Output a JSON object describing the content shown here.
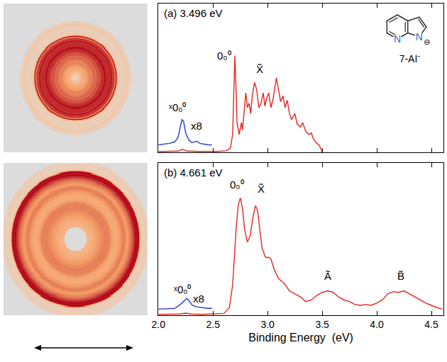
{
  "chart_data": [
    {
      "type": "line",
      "title": "(a) 3.496 eV",
      "photon_energy": 3.496,
      "xlim": [
        2.0,
        4.61
      ],
      "xticks": [
        {
          "value": 2,
          "label": "2.0"
        },
        {
          "value": 2.5,
          "label": "2.5"
        },
        {
          "value": 3,
          "label": "3.0"
        },
        {
          "value": 3.5,
          "label": "3.5"
        },
        {
          "value": 4,
          "label": "4.0"
        },
        {
          "value": 4.5,
          "label": "4.5"
        }
      ],
      "ylim": [
        0,
        1
      ],
      "grid": false,
      "tick_labels": false,
      "series": [
        {
          "color": "#e6261f",
          "x": [
            2.0,
            2.1,
            2.18,
            2.22,
            2.26,
            2.35,
            2.45,
            2.55,
            2.62,
            2.66,
            2.68,
            2.69,
            2.7,
            2.71,
            2.72,
            2.74,
            2.76,
            2.77,
            2.79,
            2.8,
            2.815,
            2.83,
            2.845,
            2.86,
            2.88,
            2.9,
            2.92,
            2.94,
            2.96,
            2.975,
            2.99,
            3.01,
            3.03,
            3.05,
            3.08,
            3.1,
            3.12,
            3.14,
            3.16,
            3.18,
            3.2,
            3.22,
            3.25,
            3.27,
            3.3,
            3.32,
            3.35,
            3.38,
            3.4,
            3.42,
            3.45,
            3.47,
            3.49,
            3.496
          ],
          "values": [
            0.005,
            0.005,
            0.008,
            0.02,
            0.008,
            0.006,
            0.006,
            0.006,
            0.01,
            0.03,
            0.12,
            0.4,
            0.65,
            0.45,
            0.2,
            0.12,
            0.2,
            0.15,
            0.32,
            0.4,
            0.3,
            0.33,
            0.26,
            0.38,
            0.47,
            0.42,
            0.3,
            0.33,
            0.4,
            0.31,
            0.36,
            0.4,
            0.3,
            0.36,
            0.5,
            0.42,
            0.34,
            0.38,
            0.3,
            0.35,
            0.26,
            0.22,
            0.26,
            0.19,
            0.17,
            0.2,
            0.14,
            0.12,
            0.13,
            0.09,
            0.06,
            0.05,
            0.02,
            0.0
          ]
        },
        {
          "color": "#2b3bd6",
          "x": [
            2.0,
            2.05,
            2.1,
            2.15,
            2.18,
            2.2,
            2.215,
            2.23,
            2.25,
            2.28,
            2.31,
            2.35,
            2.38,
            2.42,
            2.46,
            2.49
          ],
          "values": [
            0.05,
            0.055,
            0.06,
            0.07,
            0.1,
            0.17,
            0.22,
            0.21,
            0.13,
            0.08,
            0.065,
            0.075,
            0.06,
            0.055,
            0.05,
            0.05
          ]
        }
      ],
      "annotations": [
        {
          "text": "0₀⁰",
          "x": 2.6,
          "y": 0.65
        },
        {
          "text": "X̃",
          "x": 2.93,
          "y": 0.56
        },
        {
          "text": "ˣ0₀⁰",
          "x": 2.18,
          "y": 0.3
        },
        {
          "text": "x8",
          "x": 2.35,
          "y": 0.18
        }
      ]
    },
    {
      "type": "line",
      "title": "(b) 4.661 eV",
      "photon_energy": 4.661,
      "xlabel": "Binding Energy  (eV)",
      "xlim": [
        2.0,
        4.61
      ],
      "xticks": [
        {
          "value": 2,
          "label": "2.0"
        },
        {
          "value": 2.5,
          "label": "2.5"
        },
        {
          "value": 3,
          "label": "3.0"
        },
        {
          "value": 3.5,
          "label": "3.5"
        },
        {
          "value": 4,
          "label": "4.0"
        },
        {
          "value": 4.5,
          "label": "4.5"
        }
      ],
      "ylim": [
        0,
        1
      ],
      "grid": false,
      "tick_labels": "x",
      "series": [
        {
          "color": "#e6261f",
          "x": [
            2.0,
            2.2,
            2.25,
            2.3,
            2.4,
            2.5,
            2.6,
            2.65,
            2.68,
            2.71,
            2.73,
            2.75,
            2.77,
            2.79,
            2.815,
            2.84,
            2.87,
            2.89,
            2.91,
            2.93,
            2.95,
            2.98,
            3.01,
            3.03,
            3.06,
            3.1,
            3.15,
            3.2,
            3.25,
            3.3,
            3.35,
            3.4,
            3.45,
            3.5,
            3.55,
            3.6,
            3.65,
            3.7,
            3.75,
            3.8,
            3.85,
            3.9,
            3.95,
            4.0,
            4.05,
            4.1,
            4.15,
            4.2,
            4.25,
            4.3,
            4.35,
            4.4,
            4.45,
            4.5,
            4.55,
            4.6
          ],
          "values": [
            0.006,
            0.008,
            0.014,
            0.008,
            0.006,
            0.008,
            0.012,
            0.05,
            0.2,
            0.55,
            0.72,
            0.77,
            0.7,
            0.56,
            0.48,
            0.52,
            0.66,
            0.72,
            0.68,
            0.55,
            0.44,
            0.38,
            0.38,
            0.37,
            0.3,
            0.24,
            0.21,
            0.16,
            0.14,
            0.12,
            0.09,
            0.1,
            0.13,
            0.15,
            0.16,
            0.15,
            0.12,
            0.1,
            0.09,
            0.07,
            0.065,
            0.07,
            0.065,
            0.08,
            0.1,
            0.14,
            0.155,
            0.15,
            0.16,
            0.14,
            0.12,
            0.1,
            0.08,
            0.065,
            0.05,
            0.04
          ]
        },
        {
          "color": "#2b3bd6",
          "x": [
            2.0,
            2.08,
            2.15,
            2.2,
            2.24,
            2.26,
            2.28,
            2.31,
            2.35,
            2.4,
            2.45,
            2.49
          ],
          "values": [
            0.04,
            0.042,
            0.045,
            0.07,
            0.1,
            0.11,
            0.095,
            0.065,
            0.055,
            0.05,
            0.045,
            0.045
          ]
        }
      ],
      "annotations": [
        {
          "text": "0₀⁰",
          "x": 2.72,
          "y": 0.86
        },
        {
          "text": "X̃",
          "x": 2.94,
          "y": 0.83
        },
        {
          "text": "ˣ0₀⁰",
          "x": 2.22,
          "y": 0.17
        },
        {
          "text": "x8",
          "x": 2.37,
          "y": 0.11
        },
        {
          "text": "Ã",
          "x": 3.55,
          "y": 0.26
        },
        {
          "text": "B̃",
          "x": 4.22,
          "y": 0.26
        }
      ]
    }
  ],
  "structure": {
    "label": "7-AI⁻",
    "atoms": [
      "N",
      "N"
    ],
    "charge": "⊖"
  }
}
